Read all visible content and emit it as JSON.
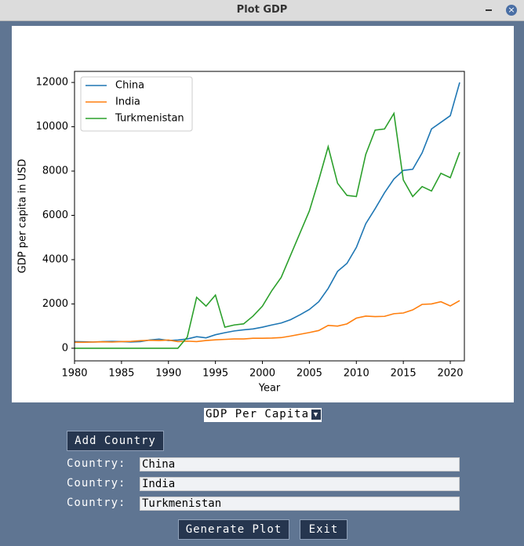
{
  "window": {
    "title": "Plot GDP"
  },
  "chart_data": {
    "type": "line",
    "xlabel": "Year",
    "ylabel": "GDP per capita in USD",
    "x": [
      1980,
      1981,
      1982,
      1983,
      1984,
      1985,
      1986,
      1987,
      1988,
      1989,
      1990,
      1991,
      1992,
      1993,
      1994,
      1995,
      1996,
      1997,
      1998,
      1999,
      2000,
      2001,
      2002,
      2003,
      2004,
      2005,
      2006,
      2007,
      2008,
      2009,
      2010,
      2011,
      2012,
      2013,
      2014,
      2015,
      2016,
      2017,
      2018,
      2019,
      2020,
      2021
    ],
    "series": [
      {
        "name": "China",
        "color": "#1f77b4",
        "values": [
          300,
          290,
          280,
          300,
          310,
          300,
          280,
          300,
          370,
          410,
          350,
          370,
          420,
          520,
          470,
          610,
          700,
          780,
          830,
          870,
          950,
          1050,
          1140,
          1290,
          1510,
          1750,
          2100,
          2700,
          3470,
          3830,
          4550,
          5620,
          6300,
          7020,
          7640,
          8030,
          8080,
          8820,
          9900,
          10200,
          10500,
          12000
        ]
      },
      {
        "name": "India",
        "color": "#ff7f0e",
        "values": [
          270,
          270,
          280,
          290,
          280,
          300,
          310,
          340,
          360,
          350,
          370,
          300,
          320,
          300,
          350,
          380,
          400,
          420,
          420,
          450,
          450,
          460,
          480,
          550,
          630,
          710,
          800,
          1030,
          1000,
          1100,
          1360,
          1450,
          1430,
          1440,
          1560,
          1590,
          1730,
          1980,
          2000,
          2100,
          1910,
          2150
        ]
      },
      {
        "name": "Turkmenistan",
        "color": "#2ca02c",
        "values": [
          0,
          0,
          0,
          0,
          0,
          0,
          0,
          0,
          0,
          0,
          0,
          0,
          500,
          2300,
          1900,
          2400,
          950,
          1050,
          1100,
          1450,
          1900,
          2600,
          3200,
          4200,
          5200,
          6200,
          7600,
          9100,
          7450,
          6900,
          6850,
          8750,
          9850,
          9900,
          10600,
          7600,
          6850,
          7300,
          7100,
          7900,
          7700,
          8850
        ]
      }
    ],
    "xlim": [
      1980,
      2021.5
    ],
    "xticks": [
      1980,
      1985,
      1990,
      1995,
      2000,
      2005,
      2010,
      2015,
      2020
    ],
    "ylim": [
      -570,
      12500
    ],
    "yticks": [
      0,
      2000,
      4000,
      6000,
      8000,
      10000,
      12000
    ],
    "legend": "upper left"
  },
  "controls": {
    "dropdown": "GDP Per Capita",
    "add_button": "Add Country",
    "countries": [
      {
        "label": "Country:",
        "value": "China"
      },
      {
        "label": "Country:",
        "value": "India"
      },
      {
        "label": "Country:",
        "value": "Turkmenistan"
      }
    ],
    "generate_button": "Generate Plot",
    "exit_button": "Exit"
  }
}
